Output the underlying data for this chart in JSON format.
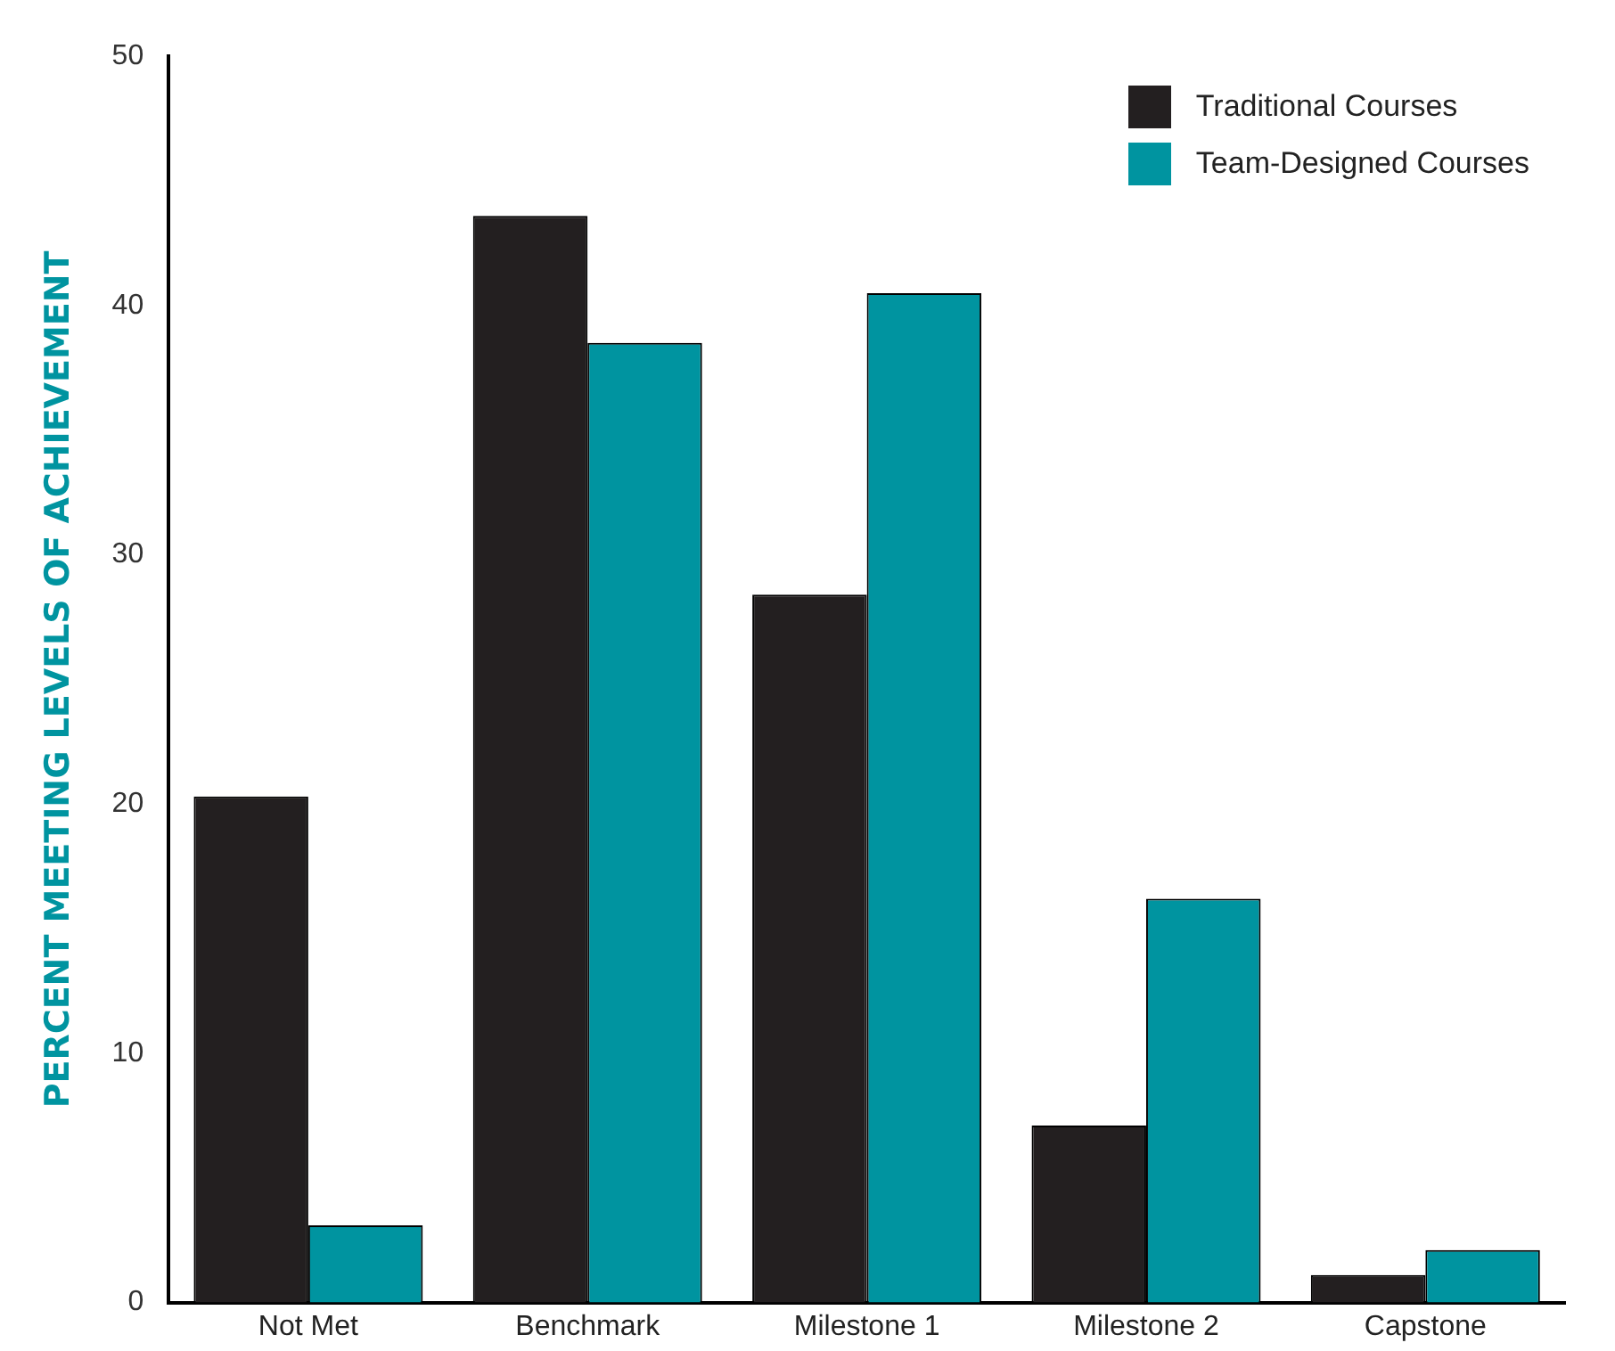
{
  "chart_data": {
    "type": "bar",
    "ylabel": "PERCENT MEETING LEVELS OF ACHIEVEMENT",
    "categories": [
      "Not Met",
      "Benchmark",
      "Milestone 1",
      "Milestone 2",
      "Capstone"
    ],
    "series": [
      {
        "name": "Traditional Courses",
        "color": "#231f20",
        "values": [
          20.3,
          43.6,
          28.4,
          7.1,
          1.1
        ]
      },
      {
        "name": "Team-Designed Courses",
        "color": "#0094a0",
        "values": [
          3.1,
          38.5,
          40.5,
          16.2,
          2.1
        ]
      }
    ],
    "ylim": [
      0,
      50
    ],
    "yticks": [
      0,
      10,
      20,
      30,
      40,
      50
    ],
    "grid": false,
    "legend": "top right"
  }
}
